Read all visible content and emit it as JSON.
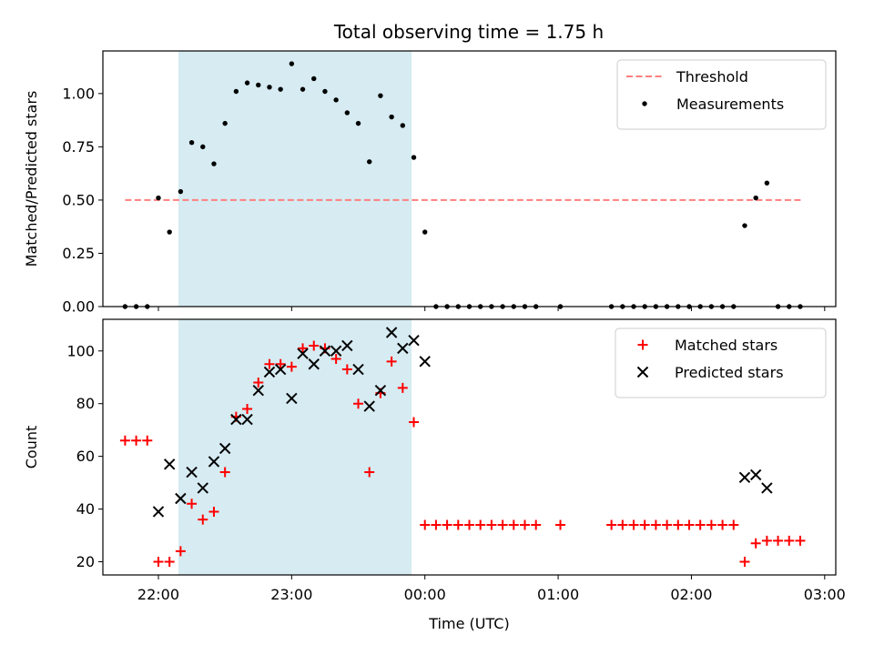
{
  "title": "Total observing time = 1.75 h",
  "colors": {
    "threshold": "#ff7f7f",
    "measurement": "#000000",
    "matched": "#ff0000",
    "predicted": "#000000",
    "span": "#add8e6"
  },
  "chart_data": [
    {
      "type": "scatter",
      "panel": "top",
      "ylabel": "Matched/Predicted stars",
      "xlabel": "",
      "ylim": [
        0,
        1.2
      ],
      "yticks": [
        0.0,
        0.25,
        0.5,
        0.75,
        1.0
      ],
      "ytick_labels": [
        "0.00",
        "0.25",
        "0.50",
        "0.75",
        "1.00"
      ],
      "xlim": [
        "21:35",
        "03:05"
      ],
      "xticks": [
        "22:00",
        "23:00",
        "00:00",
        "01:00",
        "02:00",
        "03:00"
      ],
      "highlight_span": [
        "22:09",
        "23:54"
      ],
      "legend_placement": "top-right",
      "threshold": {
        "name": "Threshold",
        "value": 0.5,
        "x_range": [
          "21:45",
          "02:50"
        ]
      },
      "series": [
        {
          "name": "Measurements",
          "marker": "dot",
          "points": [
            [
              "21:45",
              0
            ],
            [
              "21:50",
              0
            ],
            [
              "21:55",
              0
            ],
            [
              "22:00",
              0.51
            ],
            [
              "22:05",
              0.35
            ],
            [
              "22:10",
              0.54
            ],
            [
              "22:15",
              0.77
            ],
            [
              "22:20",
              0.75
            ],
            [
              "22:25",
              0.67
            ],
            [
              "22:30",
              0.86
            ],
            [
              "22:35",
              1.01
            ],
            [
              "22:40",
              1.05
            ],
            [
              "22:45",
              1.04
            ],
            [
              "22:50",
              1.03
            ],
            [
              "22:55",
              1.02
            ],
            [
              "23:00",
              1.14
            ],
            [
              "23:05",
              1.02
            ],
            [
              "23:10",
              1.07
            ],
            [
              "23:15",
              1.01
            ],
            [
              "23:20",
              0.97
            ],
            [
              "23:25",
              0.91
            ],
            [
              "23:30",
              0.86
            ],
            [
              "23:35",
              0.68
            ],
            [
              "23:40",
              0.99
            ],
            [
              "23:45",
              0.89
            ],
            [
              "23:50",
              0.85
            ],
            [
              "23:55",
              0.7
            ],
            [
              "00:00",
              0.35
            ],
            [
              "00:05",
              0
            ],
            [
              "00:10",
              0
            ],
            [
              "00:15",
              0
            ],
            [
              "00:20",
              0
            ],
            [
              "00:25",
              0
            ],
            [
              "00:30",
              0
            ],
            [
              "00:35",
              0
            ],
            [
              "00:40",
              0
            ],
            [
              "00:45",
              0
            ],
            [
              "00:50",
              0
            ],
            [
              "01:01",
              0
            ],
            [
              "01:24",
              0
            ],
            [
              "01:29",
              0
            ],
            [
              "01:34",
              0
            ],
            [
              "01:39",
              0
            ],
            [
              "01:44",
              0
            ],
            [
              "01:49",
              0
            ],
            [
              "01:54",
              0
            ],
            [
              "01:59",
              0
            ],
            [
              "02:04",
              0
            ],
            [
              "02:09",
              0
            ],
            [
              "02:14",
              0
            ],
            [
              "02:19",
              0
            ],
            [
              "02:24",
              0.38
            ],
            [
              "02:29",
              0.51
            ],
            [
              "02:34",
              0.58
            ],
            [
              "02:39",
              0
            ],
            [
              "02:44",
              0
            ],
            [
              "02:49",
              0
            ]
          ]
        }
      ]
    },
    {
      "type": "scatter",
      "panel": "bottom",
      "ylabel": "Count",
      "xlabel": "Time (UTC)",
      "ylim": [
        15,
        112
      ],
      "yticks": [
        20,
        40,
        60,
        80,
        100
      ],
      "ytick_labels": [
        "20",
        "40",
        "60",
        "80",
        "100"
      ],
      "xlim": [
        "21:35",
        "03:05"
      ],
      "xticks": [
        "22:00",
        "23:00",
        "00:00",
        "01:00",
        "02:00",
        "03:00"
      ],
      "xtick_labels": [
        "22:00",
        "23:00",
        "00:00",
        "01:00",
        "02:00",
        "03:00"
      ],
      "highlight_span": [
        "22:09",
        "23:54"
      ],
      "legend_placement": "top-right",
      "series": [
        {
          "name": "Matched stars",
          "marker": "plus",
          "points": [
            [
              "21:45",
              66
            ],
            [
              "21:50",
              66
            ],
            [
              "21:55",
              66
            ],
            [
              "22:00",
              20
            ],
            [
              "22:05",
              20
            ],
            [
              "22:10",
              24
            ],
            [
              "22:15",
              42
            ],
            [
              "22:20",
              36
            ],
            [
              "22:25",
              39
            ],
            [
              "22:30",
              54
            ],
            [
              "22:35",
              75
            ],
            [
              "22:40",
              78
            ],
            [
              "22:45",
              88
            ],
            [
              "22:50",
              95
            ],
            [
              "22:55",
              95
            ],
            [
              "23:00",
              94
            ],
            [
              "23:05",
              101
            ],
            [
              "23:10",
              102
            ],
            [
              "23:15",
              101
            ],
            [
              "23:20",
              97
            ],
            [
              "23:25",
              93
            ],
            [
              "23:30",
              80
            ],
            [
              "23:35",
              54
            ],
            [
              "23:40",
              84
            ],
            [
              "23:45",
              96
            ],
            [
              "23:50",
              86
            ],
            [
              "23:55",
              73
            ],
            [
              "00:00",
              34
            ],
            [
              "00:05",
              34
            ],
            [
              "00:10",
              34
            ],
            [
              "00:15",
              34
            ],
            [
              "00:20",
              34
            ],
            [
              "00:25",
              34
            ],
            [
              "00:30",
              34
            ],
            [
              "00:35",
              34
            ],
            [
              "00:40",
              34
            ],
            [
              "00:45",
              34
            ],
            [
              "00:50",
              34
            ],
            [
              "01:01",
              34
            ],
            [
              "01:24",
              34
            ],
            [
              "01:29",
              34
            ],
            [
              "01:34",
              34
            ],
            [
              "01:39",
              34
            ],
            [
              "01:44",
              34
            ],
            [
              "01:49",
              34
            ],
            [
              "01:54",
              34
            ],
            [
              "01:59",
              34
            ],
            [
              "02:04",
              34
            ],
            [
              "02:09",
              34
            ],
            [
              "02:14",
              34
            ],
            [
              "02:19",
              34
            ],
            [
              "02:24",
              20
            ],
            [
              "02:29",
              27
            ],
            [
              "02:34",
              28
            ],
            [
              "02:39",
              28
            ],
            [
              "02:44",
              28
            ],
            [
              "02:49",
              28
            ]
          ]
        },
        {
          "name": "Predicted stars",
          "marker": "x",
          "points": [
            [
              "22:00",
              39
            ],
            [
              "22:05",
              57
            ],
            [
              "22:10",
              44
            ],
            [
              "22:15",
              54
            ],
            [
              "22:20",
              48
            ],
            [
              "22:25",
              58
            ],
            [
              "22:30",
              63
            ],
            [
              "22:35",
              74
            ],
            [
              "22:40",
              74
            ],
            [
              "22:45",
              85
            ],
            [
              "22:50",
              92
            ],
            [
              "22:55",
              93
            ],
            [
              "23:00",
              82
            ],
            [
              "23:05",
              99
            ],
            [
              "23:10",
              95
            ],
            [
              "23:15",
              100
            ],
            [
              "23:20",
              100
            ],
            [
              "23:25",
              102
            ],
            [
              "23:30",
              93
            ],
            [
              "23:35",
              79
            ],
            [
              "23:40",
              85
            ],
            [
              "23:45",
              107
            ],
            [
              "23:50",
              101
            ],
            [
              "23:55",
              104
            ],
            [
              "00:00",
              96
            ],
            [
              "02:24",
              52
            ],
            [
              "02:29",
              53
            ],
            [
              "02:34",
              48
            ]
          ]
        }
      ]
    }
  ]
}
